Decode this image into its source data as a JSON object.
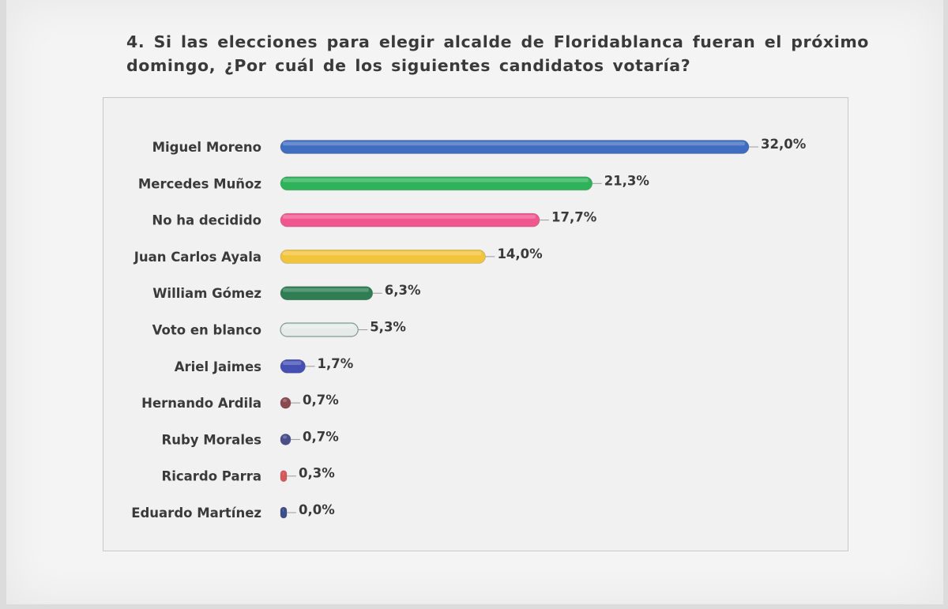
{
  "question": {
    "text": "4. Si las elecciones para elegir alcalde de Floridablanca fueran el próximo domingo, ¿Por cuál de los siguientes candidatos votaría?"
  },
  "chart_data": {
    "type": "bar",
    "orientation": "horizontal",
    "title": "",
    "xlabel": "",
    "ylabel": "",
    "xlim": [
      0,
      32
    ],
    "grid": false,
    "legend": "none",
    "categories": [
      "Miguel Moreno",
      "Mercedes Muñoz",
      "No ha decidido",
      "Juan Carlos Ayala",
      "William Gómez",
      "Voto en blanco",
      "Ariel Jaimes",
      "Hernando Ardila",
      "Ruby Morales",
      "Ricardo Parra",
      "Eduardo Martínez"
    ],
    "values": [
      32.0,
      21.3,
      17.7,
      14.0,
      6.3,
      5.3,
      1.7,
      0.7,
      0.7,
      0.3,
      0.0
    ],
    "value_labels": [
      "32,0%",
      "21,3%",
      "17,7%",
      "14,0%",
      "6,3%",
      "5,3%",
      "1,7%",
      "0,7%",
      "0,7%",
      "0,3%",
      "0,0%"
    ],
    "colors": [
      "#3f6dc0",
      "#2fb35a",
      "#f0578e",
      "#f2c43c",
      "#2e7d53",
      "#e6ebea",
      "#4650b4",
      "#8a4a4f",
      "#4a4f8c",
      "#d9565a",
      "#3d4f8a"
    ]
  }
}
